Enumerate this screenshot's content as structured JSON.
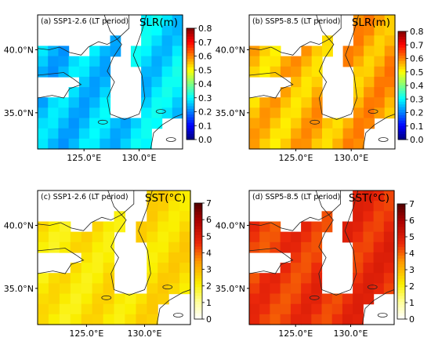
{
  "panels": [
    {
      "id": "a",
      "subtitle": "(a) SSP1-2.6 (LT period)",
      "variable": "SLR(m)",
      "lat_ticks": [
        "40.0°N",
        "35.0°N"
      ],
      "lon_ticks": [
        "125.0°E",
        "130.0°E"
      ],
      "colormap": "jet",
      "colorbar_ticks": [
        "0.8",
        "0.7",
        "0.6",
        "0.5",
        "0.4",
        "0.3",
        "0.2",
        "0.1",
        "0.0"
      ],
      "ocean_level": 0.33
    },
    {
      "id": "b",
      "subtitle": "(b) SSP5-8.5 (LT period)",
      "variable": "SLR(m)",
      "lat_ticks": [
        "40.0°N",
        "35.0°N"
      ],
      "lon_ticks": [
        "125.0°E",
        "130.0°E"
      ],
      "colormap": "jet",
      "colorbar_ticks": [
        "0.8",
        "0.7",
        "0.6",
        "0.5",
        "0.4",
        "0.3",
        "0.2",
        "0.1",
        "0.0"
      ],
      "ocean_level": 0.7
    },
    {
      "id": "c",
      "subtitle": "(c) SSP1-2.6 (LT period)",
      "variable": "SST(°C)",
      "lat_ticks": [
        "40.0°N",
        "35.0°N"
      ],
      "lon_ticks": [
        "125.0°E",
        "130.0°E"
      ],
      "colormap": "hot_r",
      "colorbar_ticks": [
        "7",
        "6",
        "5",
        "4",
        "3",
        "2",
        "1",
        "0"
      ],
      "ocean_level": 0.33
    },
    {
      "id": "d",
      "subtitle": "(d) SSP5-8.5 (LT period)",
      "variable": "SST(°C)",
      "lat_ticks": [
        "40.0°N",
        "35.0°N"
      ],
      "lon_ticks": [
        "125.0°E",
        "130.0°E"
      ],
      "colormap": "hot_r",
      "colorbar_ticks": [
        "7",
        "6",
        "5",
        "4",
        "3",
        "2",
        "1",
        "0"
      ],
      "ocean_level": 0.64
    }
  ]
}
